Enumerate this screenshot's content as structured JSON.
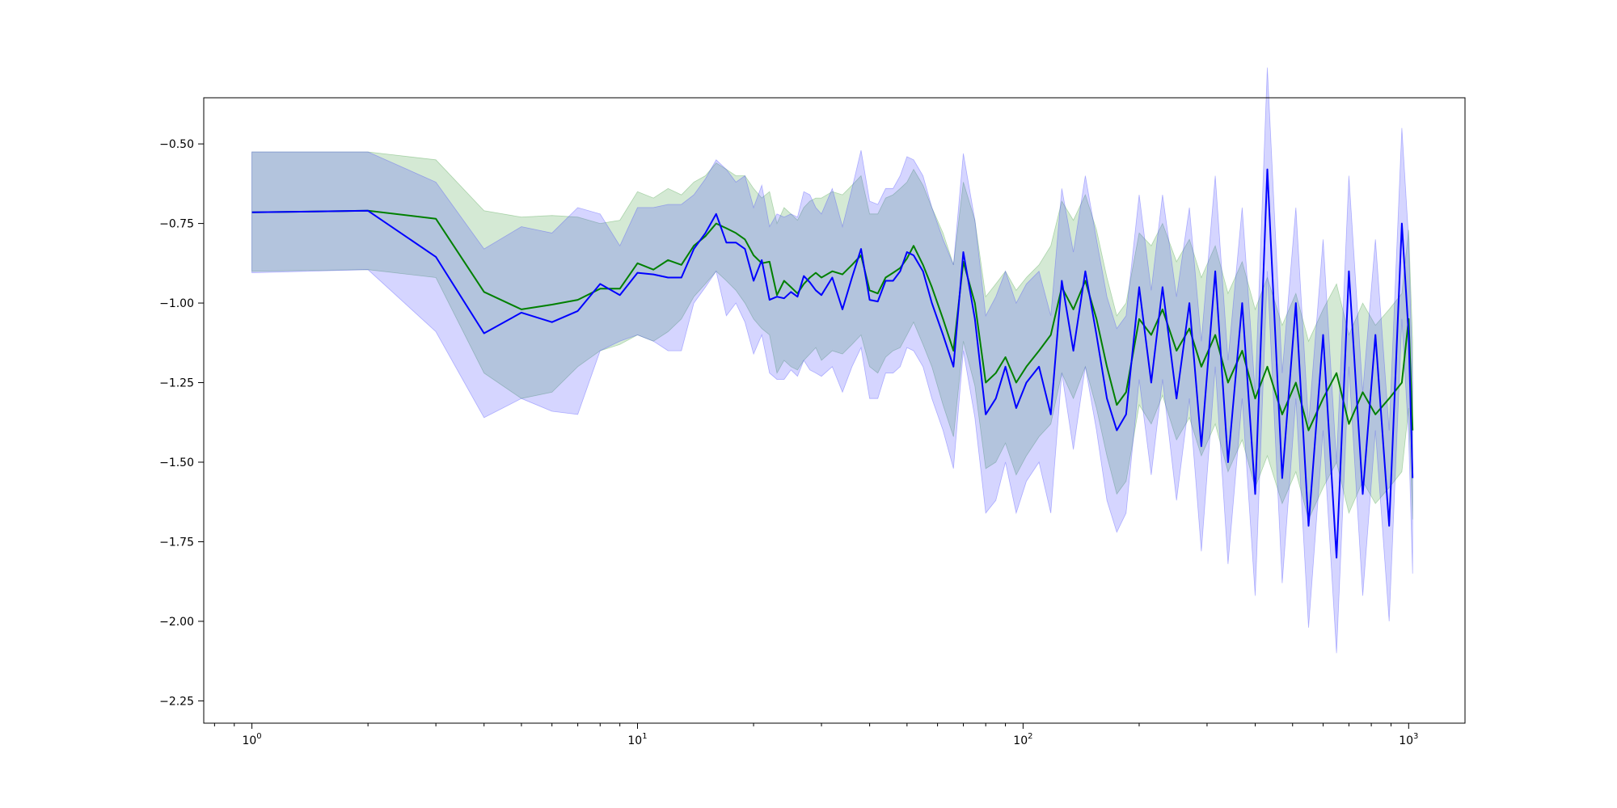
{
  "chart_data": {
    "type": "line",
    "title": "",
    "xlabel": "",
    "ylabel": "",
    "x_scale": "log",
    "xlim": [
      0.75,
      1400
    ],
    "ylim": [
      -2.32,
      -0.355
    ],
    "grid": false,
    "legend": "none",
    "x_ticks": [
      {
        "value": 1,
        "base": "10",
        "exp": "0"
      },
      {
        "value": 10,
        "base": "10",
        "exp": "1"
      },
      {
        "value": 100,
        "base": "10",
        "exp": "2"
      },
      {
        "value": 1000,
        "base": "10",
        "exp": "3"
      }
    ],
    "y_ticks": [
      {
        "value": -0.5,
        "label": "−0.50"
      },
      {
        "value": -0.75,
        "label": "−0.75"
      },
      {
        "value": -1.0,
        "label": "−1.00"
      },
      {
        "value": -1.25,
        "label": "−1.25"
      },
      {
        "value": -1.5,
        "label": "−1.50"
      },
      {
        "value": -1.75,
        "label": "−1.75"
      },
      {
        "value": -2.0,
        "label": "−2.00"
      },
      {
        "value": -2.25,
        "label": "−2.25"
      }
    ],
    "series": [
      {
        "color": "#008000",
        "band_color": "#3c9a3c",
        "x": [
          1,
          2,
          3,
          4,
          5,
          6,
          7,
          8,
          9,
          10,
          11,
          12,
          13,
          14,
          15,
          16,
          17,
          18,
          19,
          20,
          21,
          22,
          23,
          24,
          25,
          26,
          27,
          28,
          29,
          30,
          32,
          34,
          36,
          38,
          40,
          42,
          44,
          46,
          48,
          50,
          52,
          55,
          58,
          62,
          66,
          70,
          75,
          80,
          85,
          90,
          96,
          102,
          110,
          118,
          126,
          135,
          145,
          155,
          165,
          175,
          185,
          200,
          215,
          230,
          250,
          270,
          290,
          315,
          340,
          370,
          400,
          430,
          470,
          510,
          550,
          600,
          650,
          700,
          760,
          820,
          890,
          960,
          1000,
          1024
        ],
        "y": [
          -0.715,
          -0.71,
          -0.735,
          -0.965,
          -1.02,
          -1.005,
          -0.99,
          -0.955,
          -0.955,
          -0.875,
          -0.895,
          -0.865,
          -0.88,
          -0.82,
          -0.79,
          -0.75,
          -0.765,
          -0.78,
          -0.8,
          -0.85,
          -0.875,
          -0.87,
          -0.975,
          -0.93,
          -0.95,
          -0.97,
          -0.94,
          -0.92,
          -0.905,
          -0.92,
          -0.9,
          -0.91,
          -0.88,
          -0.85,
          -0.96,
          -0.97,
          -0.92,
          -0.905,
          -0.89,
          -0.86,
          -0.82,
          -0.88,
          -0.95,
          -1.05,
          -1.15,
          -0.87,
          -1.0,
          -1.25,
          -1.22,
          -1.17,
          -1.25,
          -1.2,
          -1.15,
          -1.1,
          -0.95,
          -1.02,
          -0.93,
          -1.05,
          -1.2,
          -1.32,
          -1.28,
          -1.05,
          -1.1,
          -1.02,
          -1.15,
          -1.08,
          -1.2,
          -1.1,
          -1.25,
          -1.15,
          -1.3,
          -1.2,
          -1.35,
          -1.25,
          -1.4,
          -1.3,
          -1.22,
          -1.38,
          -1.28,
          -1.35,
          -1.3,
          -1.25,
          -1.05,
          -1.4
        ],
        "lower": [
          -0.9,
          -0.895,
          -0.92,
          -1.22,
          -1.3,
          -1.28,
          -1.2,
          -1.15,
          -1.13,
          -1.1,
          -1.12,
          -1.09,
          -1.05,
          -0.98,
          -0.94,
          -0.9,
          -0.93,
          -0.96,
          -1.0,
          -1.05,
          -1.08,
          -1.1,
          -1.22,
          -1.18,
          -1.2,
          -1.21,
          -1.18,
          -1.16,
          -1.14,
          -1.18,
          -1.15,
          -1.16,
          -1.13,
          -1.1,
          -1.2,
          -1.22,
          -1.17,
          -1.15,
          -1.14,
          -1.1,
          -1.06,
          -1.13,
          -1.2,
          -1.32,
          -1.42,
          -1.12,
          -1.26,
          -1.52,
          -1.5,
          -1.44,
          -1.54,
          -1.48,
          -1.42,
          -1.38,
          -1.22,
          -1.3,
          -1.2,
          -1.33,
          -1.48,
          -1.6,
          -1.56,
          -1.32,
          -1.38,
          -1.29,
          -1.43,
          -1.36,
          -1.48,
          -1.38,
          -1.53,
          -1.43,
          -1.58,
          -1.48,
          -1.63,
          -1.53,
          -1.68,
          -1.58,
          -1.5,
          -1.66,
          -1.56,
          -1.63,
          -1.58,
          -1.53,
          -1.33,
          -1.68
        ],
        "upper": [
          -0.525,
          -0.525,
          -0.55,
          -0.71,
          -0.73,
          -0.725,
          -0.73,
          -0.75,
          -0.74,
          -0.65,
          -0.67,
          -0.64,
          -0.66,
          -0.62,
          -0.6,
          -0.56,
          -0.58,
          -0.6,
          -0.6,
          -0.64,
          -0.67,
          -0.65,
          -0.75,
          -0.7,
          -0.72,
          -0.74,
          -0.7,
          -0.68,
          -0.67,
          -0.67,
          -0.65,
          -0.66,
          -0.63,
          -0.6,
          -0.72,
          -0.72,
          -0.67,
          -0.66,
          -0.64,
          -0.62,
          -0.58,
          -0.63,
          -0.7,
          -0.78,
          -0.88,
          -0.62,
          -0.74,
          -0.98,
          -0.94,
          -0.9,
          -0.96,
          -0.92,
          -0.88,
          -0.82,
          -0.68,
          -0.74,
          -0.66,
          -0.77,
          -0.92,
          -1.04,
          -1.0,
          -0.78,
          -0.82,
          -0.75,
          -0.87,
          -0.8,
          -0.92,
          -0.82,
          -0.97,
          -0.87,
          -1.02,
          -0.92,
          -1.07,
          -0.97,
          -1.12,
          -1.02,
          -0.94,
          -1.1,
          -1.0,
          -1.07,
          -1.02,
          -0.97,
          -0.77,
          -1.12
        ]
      },
      {
        "color": "#0000ff",
        "band_color": "#4040ff",
        "x": [
          1,
          2,
          3,
          4,
          5,
          6,
          7,
          8,
          9,
          10,
          11,
          12,
          13,
          14,
          15,
          16,
          17,
          18,
          19,
          20,
          21,
          22,
          23,
          24,
          25,
          26,
          27,
          28,
          29,
          30,
          32,
          34,
          36,
          38,
          40,
          42,
          44,
          46,
          48,
          50,
          52,
          55,
          58,
          62,
          66,
          70,
          75,
          80,
          85,
          90,
          96,
          102,
          110,
          118,
          126,
          135,
          145,
          155,
          165,
          175,
          185,
          200,
          215,
          230,
          250,
          270,
          290,
          315,
          340,
          370,
          400,
          430,
          470,
          510,
          550,
          600,
          650,
          700,
          760,
          820,
          890,
          960,
          1000,
          1024
        ],
        "y": [
          -0.715,
          -0.71,
          -0.855,
          -1.095,
          -1.03,
          -1.06,
          -1.025,
          -0.94,
          -0.975,
          -0.905,
          -0.91,
          -0.92,
          -0.92,
          -0.83,
          -0.78,
          -0.72,
          -0.81,
          -0.81,
          -0.83,
          -0.93,
          -0.865,
          -0.99,
          -0.98,
          -0.985,
          -0.965,
          -0.98,
          -0.915,
          -0.935,
          -0.96,
          -0.975,
          -0.92,
          -1.02,
          -0.92,
          -0.83,
          -0.99,
          -0.995,
          -0.93,
          -0.93,
          -0.9,
          -0.84,
          -0.85,
          -0.9,
          -1.0,
          -1.1,
          -1.2,
          -0.84,
          -1.05,
          -1.35,
          -1.3,
          -1.2,
          -1.33,
          -1.25,
          -1.2,
          -1.35,
          -0.93,
          -1.15,
          -0.9,
          -1.1,
          -1.3,
          -1.4,
          -1.35,
          -0.95,
          -1.25,
          -0.95,
          -1.3,
          -1.0,
          -1.45,
          -0.9,
          -1.5,
          -1.0,
          -1.6,
          -0.58,
          -1.55,
          -1.0,
          -1.7,
          -1.1,
          -1.8,
          -0.9,
          -1.6,
          -1.1,
          -1.7,
          -0.75,
          -1.1,
          -1.55
        ],
        "lower": [
          -0.905,
          -0.895,
          -1.09,
          -1.36,
          -1.3,
          -1.34,
          -1.35,
          -1.15,
          -1.12,
          -1.1,
          -1.12,
          -1.15,
          -1.15,
          -1.0,
          -0.95,
          -0.9,
          -1.04,
          -1.0,
          -1.06,
          -1.16,
          -1.1,
          -1.22,
          -1.24,
          -1.24,
          -1.21,
          -1.23,
          -1.18,
          -1.21,
          -1.22,
          -1.23,
          -1.2,
          -1.28,
          -1.2,
          -1.14,
          -1.3,
          -1.3,
          -1.22,
          -1.22,
          -1.2,
          -1.14,
          -1.15,
          -1.2,
          -1.3,
          -1.4,
          -1.52,
          -1.15,
          -1.36,
          -1.66,
          -1.62,
          -1.5,
          -1.66,
          -1.56,
          -1.5,
          -1.66,
          -1.22,
          -1.46,
          -1.2,
          -1.4,
          -1.62,
          -1.72,
          -1.66,
          -1.24,
          -1.54,
          -1.24,
          -1.62,
          -1.3,
          -1.78,
          -1.2,
          -1.82,
          -1.3,
          -1.92,
          -0.9,
          -1.88,
          -1.3,
          -2.02,
          -1.4,
          -2.1,
          -1.2,
          -1.92,
          -1.4,
          -2.0,
          -1.05,
          -1.42,
          -1.85
        ],
        "upper": [
          -0.525,
          -0.525,
          -0.62,
          -0.83,
          -0.76,
          -0.78,
          -0.7,
          -0.72,
          -0.82,
          -0.7,
          -0.7,
          -0.69,
          -0.69,
          -0.66,
          -0.61,
          -0.55,
          -0.58,
          -0.62,
          -0.6,
          -0.7,
          -0.63,
          -0.76,
          -0.72,
          -0.73,
          -0.72,
          -0.73,
          -0.65,
          -0.66,
          -0.7,
          -0.72,
          -0.64,
          -0.76,
          -0.64,
          -0.52,
          -0.68,
          -0.69,
          -0.64,
          -0.64,
          -0.6,
          -0.54,
          -0.55,
          -0.6,
          -0.7,
          -0.8,
          -0.88,
          -0.53,
          -0.74,
          -1.04,
          -0.98,
          -0.9,
          -1.0,
          -0.94,
          -0.9,
          -1.04,
          -0.64,
          -0.84,
          -0.6,
          -0.8,
          -0.98,
          -1.08,
          -1.04,
          -0.66,
          -0.96,
          -0.66,
          -0.98,
          -0.7,
          -1.12,
          -0.6,
          -1.18,
          -0.7,
          -1.28,
          -0.26,
          -1.22,
          -0.7,
          -1.38,
          -0.8,
          -1.5,
          -0.6,
          -1.28,
          -0.8,
          -1.4,
          -0.45,
          -0.8,
          -1.25
        ]
      }
    ]
  }
}
